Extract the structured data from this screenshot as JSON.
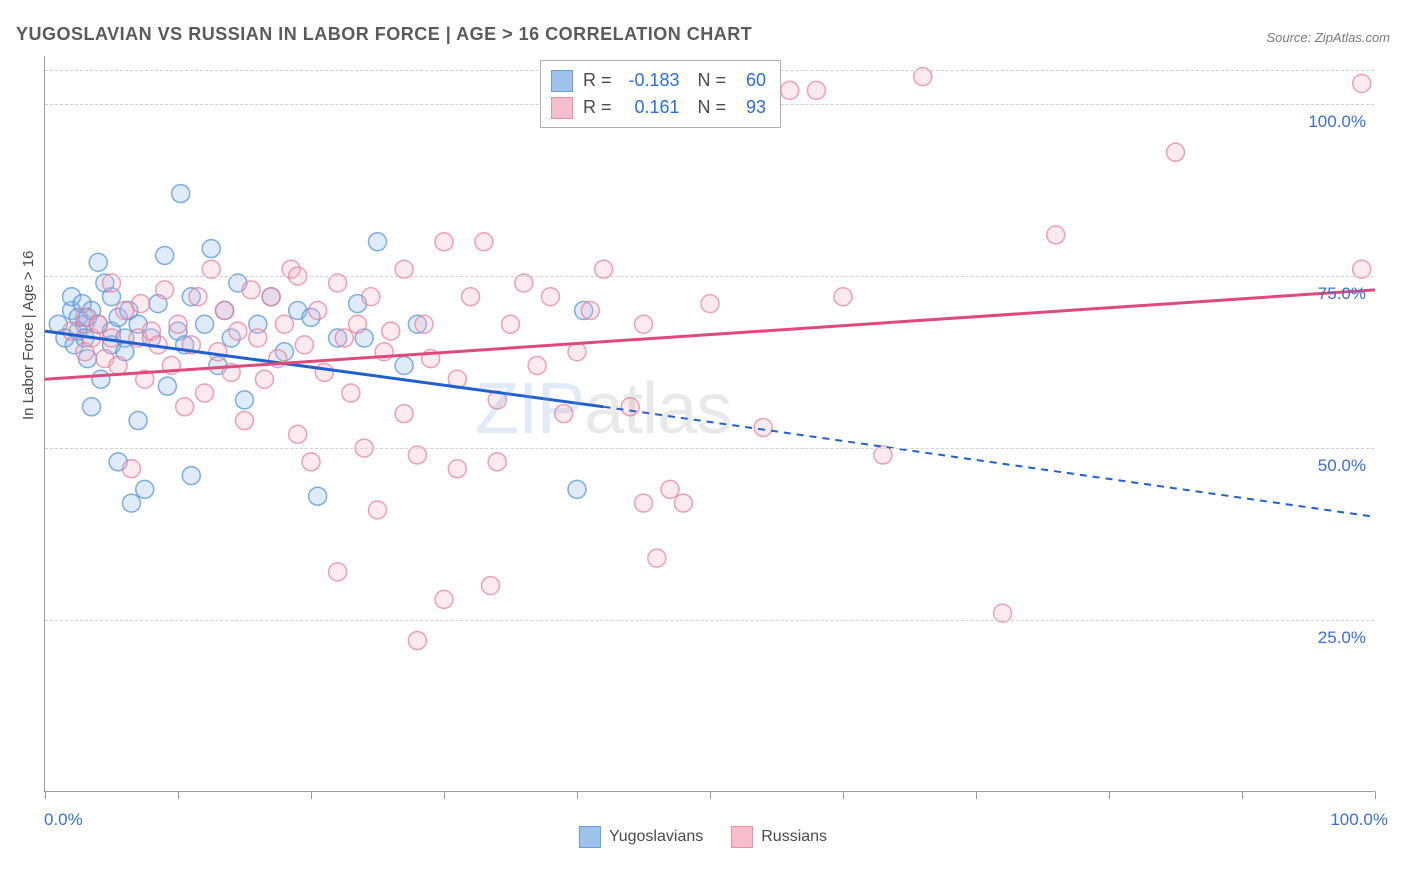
{
  "title": "YUGOSLAVIAN VS RUSSIAN IN LABOR FORCE | AGE > 16 CORRELATION CHART",
  "source": "Source: ZipAtlas.com",
  "y_axis_label": "In Labor Force | Age > 16",
  "watermark_a": "ZIP",
  "watermark_b": "atlas",
  "chart": {
    "type": "scatter",
    "xlim": [
      0,
      100
    ],
    "ylim": [
      0,
      107
    ],
    "x_ticks": [
      0,
      10,
      20,
      30,
      40,
      50,
      60,
      70,
      80,
      90,
      100
    ],
    "y_gridlines": [
      25,
      50,
      75,
      100,
      105
    ],
    "y_tick_labels": [
      {
        "val": 25,
        "text": "25.0%"
      },
      {
        "val": 50,
        "text": "50.0%"
      },
      {
        "val": 75,
        "text": "75.0%"
      },
      {
        "val": 100,
        "text": "100.0%"
      }
    ],
    "x_tick_labels": [
      {
        "val": 0,
        "text": "0.0%"
      },
      {
        "val": 100,
        "text": "100.0%"
      }
    ],
    "background": "#ffffff",
    "grid_color": "#d0d0d0",
    "axis_color": "#9a9a9a",
    "marker_radius": 9,
    "marker_stroke_width": 1.5,
    "marker_fill_opacity": 0.28,
    "line_width_solid": 3,
    "line_width_dash": 2,
    "series": [
      {
        "name": "Yugoslavians",
        "color_stroke": "#4a8fd8",
        "color_fill": "#8fb8e8",
        "trend_color": "#1f5fd0",
        "R": "-0.183",
        "N": "60",
        "trend": {
          "x1": 0,
          "y1": 67,
          "x2_solid": 42,
          "y2_solid": 56,
          "x2": 100,
          "y2": 40
        },
        "points": [
          [
            1,
            68
          ],
          [
            1.5,
            66
          ],
          [
            2,
            70
          ],
          [
            2,
            72
          ],
          [
            2.2,
            65
          ],
          [
            2.5,
            67
          ],
          [
            2.5,
            69
          ],
          [
            2.8,
            71
          ],
          [
            3,
            68
          ],
          [
            3,
            66
          ],
          [
            3.2,
            63
          ],
          [
            3.2,
            69
          ],
          [
            3.5,
            70
          ],
          [
            3.5,
            56
          ],
          [
            4,
            77
          ],
          [
            4,
            68
          ],
          [
            4.2,
            60
          ],
          [
            4.5,
            74
          ],
          [
            5,
            67
          ],
          [
            5,
            65
          ],
          [
            5,
            72
          ],
          [
            5.5,
            48
          ],
          [
            5.5,
            69
          ],
          [
            6,
            66
          ],
          [
            6,
            64
          ],
          [
            6.3,
            70
          ],
          [
            6.5,
            42
          ],
          [
            7,
            54
          ],
          [
            7,
            68
          ],
          [
            7.5,
            44
          ],
          [
            8,
            66
          ],
          [
            8.5,
            71
          ],
          [
            9,
            78
          ],
          [
            9.2,
            59
          ],
          [
            10,
            67
          ],
          [
            10.2,
            87
          ],
          [
            10.5,
            65
          ],
          [
            11,
            46
          ],
          [
            11,
            72
          ],
          [
            12,
            68
          ],
          [
            12.5,
            79
          ],
          [
            13,
            62
          ],
          [
            13.5,
            70
          ],
          [
            14,
            66
          ],
          [
            14.5,
            74
          ],
          [
            15,
            57
          ],
          [
            16,
            68
          ],
          [
            17,
            72
          ],
          [
            18,
            64
          ],
          [
            19,
            70
          ],
          [
            20,
            69
          ],
          [
            20.5,
            43
          ],
          [
            22,
            66
          ],
          [
            23.5,
            71
          ],
          [
            24,
            66
          ],
          [
            25,
            80
          ],
          [
            27,
            62
          ],
          [
            28,
            68
          ],
          [
            40,
            44
          ],
          [
            40.5,
            70
          ]
        ]
      },
      {
        "name": "Russians",
        "color_stroke": "#e77a9a",
        "color_fill": "#f5b3c5",
        "trend_color": "#e04a7a",
        "R": "0.161",
        "N": "93",
        "trend": {
          "x1": 0,
          "y1": 60,
          "x2_solid": 100,
          "y2_solid": 73,
          "x2": 100,
          "y2": 73
        },
        "points": [
          [
            2,
            67
          ],
          [
            3,
            64
          ],
          [
            3,
            69
          ],
          [
            3.5,
            66
          ],
          [
            4,
            68
          ],
          [
            4.5,
            63
          ],
          [
            5,
            66
          ],
          [
            5,
            74
          ],
          [
            5.5,
            62
          ],
          [
            6,
            70
          ],
          [
            6.5,
            47
          ],
          [
            7,
            66
          ],
          [
            7.2,
            71
          ],
          [
            7.5,
            60
          ],
          [
            8,
            67
          ],
          [
            8.5,
            65
          ],
          [
            9,
            73
          ],
          [
            9.5,
            62
          ],
          [
            10,
            68
          ],
          [
            10.5,
            56
          ],
          [
            11,
            65
          ],
          [
            11.5,
            72
          ],
          [
            12,
            58
          ],
          [
            12.5,
            76
          ],
          [
            13,
            64
          ],
          [
            13.5,
            70
          ],
          [
            14,
            61
          ],
          [
            14.5,
            67
          ],
          [
            15,
            54
          ],
          [
            15.5,
            73
          ],
          [
            16,
            66
          ],
          [
            16.5,
            60
          ],
          [
            17,
            72
          ],
          [
            17.5,
            63
          ],
          [
            18,
            68
          ],
          [
            18.5,
            76
          ],
          [
            19,
            52
          ],
          [
            19,
            75
          ],
          [
            19.5,
            65
          ],
          [
            20,
            48
          ],
          [
            20.5,
            70
          ],
          [
            21,
            61
          ],
          [
            22,
            74
          ],
          [
            22,
            32
          ],
          [
            22.5,
            66
          ],
          [
            23,
            58
          ],
          [
            23.5,
            68
          ],
          [
            24,
            50
          ],
          [
            24.5,
            72
          ],
          [
            25,
            41
          ],
          [
            25.5,
            64
          ],
          [
            26,
            67
          ],
          [
            27,
            55
          ],
          [
            27,
            76
          ],
          [
            28,
            49
          ],
          [
            28,
            22
          ],
          [
            28.5,
            68
          ],
          [
            29,
            63
          ],
          [
            30,
            80
          ],
          [
            30,
            28
          ],
          [
            31,
            60
          ],
          [
            31,
            47
          ],
          [
            32,
            72
          ],
          [
            33,
            80
          ],
          [
            33.5,
            30
          ],
          [
            34,
            57
          ],
          [
            34,
            48
          ],
          [
            35,
            68
          ],
          [
            36,
            74
          ],
          [
            37,
            62
          ],
          [
            38,
            72
          ],
          [
            39,
            55
          ],
          [
            40,
            64
          ],
          [
            41,
            70
          ],
          [
            42,
            76
          ],
          [
            44,
            56
          ],
          [
            45,
            68
          ],
          [
            46,
            34
          ],
          [
            47,
            44
          ],
          [
            48,
            42
          ],
          [
            50,
            71
          ],
          [
            54,
            53
          ],
          [
            56,
            102
          ],
          [
            58,
            102
          ],
          [
            60,
            72
          ],
          [
            63,
            49
          ],
          [
            66,
            104
          ],
          [
            72,
            26
          ],
          [
            76,
            81
          ],
          [
            85,
            93
          ],
          [
            99,
            103
          ],
          [
            99,
            76
          ],
          [
            45,
            42
          ]
        ]
      }
    ]
  },
  "colors": {
    "blue_text": "#3a6fd8",
    "title_text": "#5a5a5a"
  }
}
